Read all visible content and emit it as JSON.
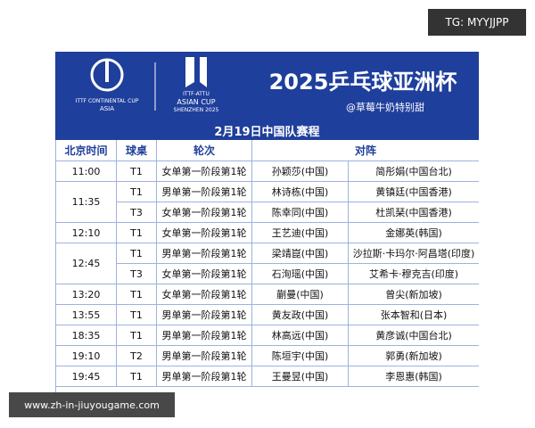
{
  "badge": "TG: MYYJJPP",
  "header": {
    "logo_left": {
      "line1": "ITTF CONTINENTAL CUP",
      "line2": "ASIA"
    },
    "logo_right": {
      "line1": "ITTF-ATTU",
      "line2": "ASIAN CUP",
      "line3": "SHENZHEN 2025"
    },
    "title": "2025乒乓球亚洲杯",
    "author": "@草莓牛奶特别甜"
  },
  "subtitle": "2月19日中国队赛程",
  "columns": [
    "北京时间",
    "球桌",
    "轮次",
    "对阵"
  ],
  "rows": [
    {
      "time": "11:00",
      "matches": [
        {
          "table": "T1",
          "round": "女单第一阶段第1轮",
          "player1": "孙颖莎(中国)",
          "player2": "简彤娟(中国台北)"
        }
      ]
    },
    {
      "time": "11:35",
      "matches": [
        {
          "table": "T1",
          "round": "男单第一阶段第1轮",
          "player1": "林诗栋(中国)",
          "player2": "黄镇廷(中国香港)"
        },
        {
          "table": "T3",
          "round": "女单第一阶段第1轮",
          "player1": "陈幸同(中国)",
          "player2": "杜凯琹(中国香港)"
        }
      ]
    },
    {
      "time": "12:10",
      "matches": [
        {
          "table": "T1",
          "round": "女单第一阶段第1轮",
          "player1": "王艺迪(中国)",
          "player2": "金娜英(韩国)"
        }
      ]
    },
    {
      "time": "12:45",
      "matches": [
        {
          "table": "T1",
          "round": "男单第一阶段第1轮",
          "player1": "梁靖崑(中国)",
          "player2": "沙拉斯·卡玛尔·阿昌塔(印度)"
        },
        {
          "table": "T3",
          "round": "女单第一阶段第1轮",
          "player1": "石洵瑶(中国)",
          "player2": "艾希卡·穆克吉(印度)"
        }
      ]
    },
    {
      "time": "13:20",
      "matches": [
        {
          "table": "T1",
          "round": "女单第一阶段第1轮",
          "player1": "蒯曼(中国)",
          "player2": "曾尖(新加坡)"
        }
      ]
    },
    {
      "time": "13:55",
      "matches": [
        {
          "table": "T1",
          "round": "男单第一阶段第1轮",
          "player1": "黄友政(中国)",
          "player2": "张本智和(日本)"
        }
      ]
    },
    {
      "time": "18:35",
      "matches": [
        {
          "table": "T1",
          "round": "男单第一阶段第1轮",
          "player1": "林高远(中国)",
          "player2": "黄彦诚(中国台北)"
        }
      ]
    },
    {
      "time": "19:10",
      "matches": [
        {
          "table": "T2",
          "round": "男单第一阶段第1轮",
          "player1": "陈垣宇(中国)",
          "player2": "郭勇(新加坡)"
        }
      ]
    },
    {
      "time": "19:45",
      "matches": [
        {
          "table": "T1",
          "round": "男单第一阶段第1轮",
          "player1": "王曼昱(中国)",
          "player2": "李恩惠(韩国)"
        }
      ]
    }
  ],
  "watermark": "www.zh-in-jiuyougame.com"
}
